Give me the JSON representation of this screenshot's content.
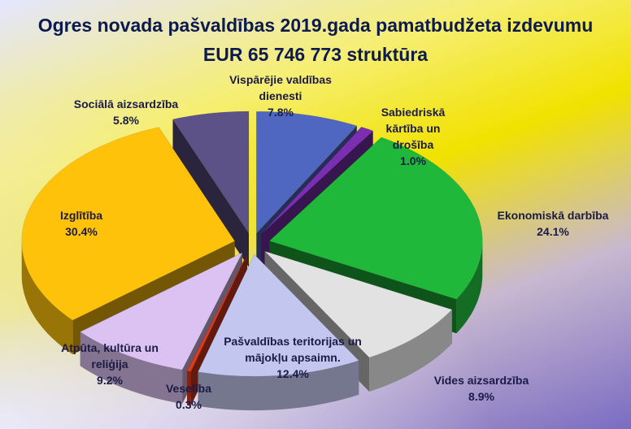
{
  "chart_data": {
    "type": "pie3d",
    "title": "Ogres novada pašvaldības 2019.gada pamatbudžeta izdevumu",
    "subtitle": "EUR 65 746 773 struktūra",
    "categories": [
      "Vispārējie valdības dienesti",
      "Sabiedriskā kārtība un drošība",
      "Ekonomiskā darbība",
      "Vides aizsardzība",
      "Pašvaldības teritorijas un mājokļu apsaimn.",
      "Veselība",
      "Atpūta, kultūra un reliģija",
      "Izglītība",
      "Sociālā aizsardzība"
    ],
    "values": [
      7.8,
      1.0,
      24.1,
      8.9,
      12.4,
      0.3,
      9.2,
      30.4,
      5.8
    ],
    "value_labels": [
      "7.8%",
      "1.0%",
      "24.1%",
      "8.9%",
      "12.4%",
      "0.3%",
      "9.2%",
      "30.4%",
      "5.8%"
    ],
    "colors": [
      "#4f67c0",
      "#7a2fb0",
      "#20b83a",
      "#e2e2e2",
      "#c3c6ee",
      "#d93a20",
      "#dcc2f2",
      "#ffc20a",
      "#5d5288"
    ]
  }
}
